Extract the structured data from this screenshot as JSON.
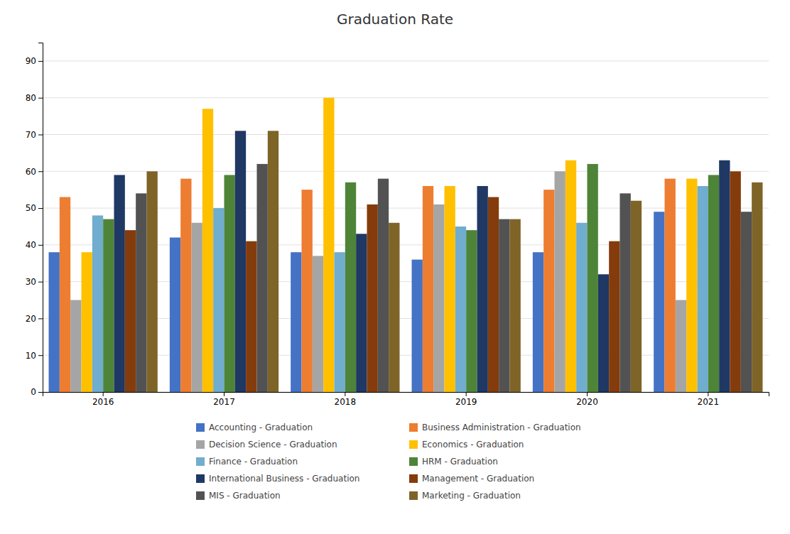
{
  "chart_data": {
    "type": "bar",
    "title": "Graduation Rate",
    "categories": [
      "2016",
      "2017",
      "2018",
      "2019",
      "2020",
      "2021"
    ],
    "series": [
      {
        "name": "Accounting - Graduation",
        "color": "#4472C4",
        "values": [
          38,
          42,
          38,
          36,
          38,
          49
        ]
      },
      {
        "name": "Business Administration - Graduation",
        "color": "#ED7D31",
        "values": [
          53,
          58,
          55,
          56,
          55,
          58
        ]
      },
      {
        "name": "Decision Science - Graduation",
        "color": "#A5A5A5",
        "values": [
          25,
          46,
          37,
          51,
          60,
          25
        ]
      },
      {
        "name": "Economics - Graduation",
        "color": "#FFC000",
        "values": [
          38,
          77,
          80,
          56,
          63,
          58
        ]
      },
      {
        "name": "Finance - Graduation",
        "color": "#70ADCE",
        "values": [
          48,
          50,
          38,
          45,
          46,
          56
        ]
      },
      {
        "name": "HRM - Graduation",
        "color": "#4E8438",
        "values": [
          47,
          59,
          57,
          44,
          62,
          59
        ]
      },
      {
        "name": "International Business - Graduation",
        "color": "#1F3864",
        "values": [
          59,
          71,
          43,
          56,
          32,
          63
        ]
      },
      {
        "name": "Management - Graduation",
        "color": "#843C0C",
        "values": [
          44,
          41,
          51,
          53,
          41,
          60
        ]
      },
      {
        "name": "MIS - Graduation",
        "color": "#525252",
        "values": [
          54,
          62,
          58,
          47,
          54,
          49
        ]
      },
      {
        "name": "Marketing - Graduation",
        "color": "#7F6428",
        "values": [
          60,
          71,
          46,
          47,
          52,
          57
        ]
      }
    ],
    "ylim": [
      0,
      95
    ],
    "yticks": [
      0,
      10,
      20,
      30,
      40,
      50,
      60,
      70,
      80,
      90
    ],
    "grid": true,
    "legend": "bottom"
  }
}
